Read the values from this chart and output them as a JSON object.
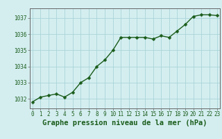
{
  "hours": [
    0,
    1,
    2,
    3,
    4,
    5,
    6,
    7,
    8,
    9,
    10,
    11,
    12,
    13,
    14,
    15,
    16,
    17,
    18,
    19,
    20,
    21,
    22,
    23
  ],
  "pressure": [
    1031.8,
    1032.1,
    1032.2,
    1032.3,
    1032.1,
    1032.4,
    1033.0,
    1033.3,
    1034.0,
    1034.4,
    1035.0,
    1035.8,
    1035.8,
    1035.8,
    1035.8,
    1035.7,
    1035.9,
    1035.8,
    1036.2,
    1036.6,
    1037.1,
    1037.2,
    1037.2,
    1037.15
  ],
  "line_color": "#1a5c1a",
  "marker": "D",
  "markersize": 2.5,
  "linewidth": 1.0,
  "background_color": "#d4eef0",
  "grid_color": "#aad4d8",
  "title": "Graphe pression niveau de la mer (hPa)",
  "ylabel_ticks": [
    1032,
    1033,
    1034,
    1035,
    1036,
    1037
  ],
  "xlabel_ticks": [
    0,
    1,
    2,
    3,
    4,
    5,
    6,
    7,
    8,
    9,
    10,
    11,
    12,
    13,
    14,
    15,
    16,
    17,
    18,
    19,
    20,
    21,
    22,
    23
  ],
  "ylim": [
    1031.4,
    1037.6
  ],
  "xlim": [
    -0.3,
    23.3
  ],
  "title_fontsize": 7.5,
  "tick_fontsize": 5.5,
  "tick_color": "#1a5c1a",
  "spine_color": "#666666",
  "title_bg_color": "#c8e8e8"
}
